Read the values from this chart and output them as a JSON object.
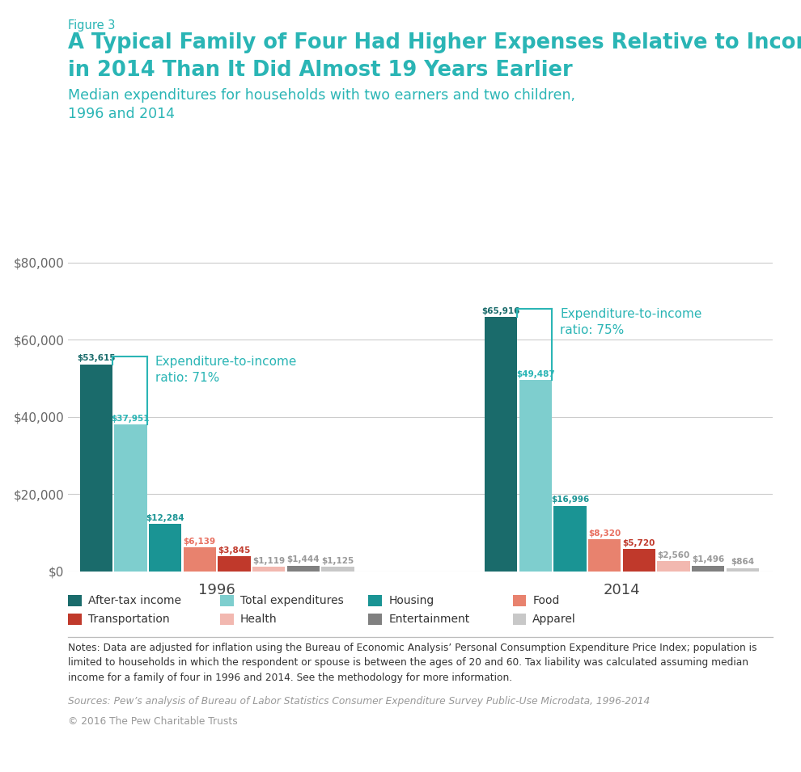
{
  "figure3_label": "Figure 3",
  "title_line1": "A Typical Family of Four Had Higher Expenses Relative to Income",
  "title_line2": "in 2014 Than It Did Almost 19 Years Earlier",
  "subtitle": "Median expenditures for households with two earners and two children,\n1996 and 2014",
  "years": [
    "1996",
    "2014"
  ],
  "categories": [
    "After-tax income",
    "Total expenditures",
    "Housing",
    "Food",
    "Transportation",
    "Health",
    "Entertainment",
    "Apparel"
  ],
  "values_1996": [
    53615,
    37951,
    12284,
    6139,
    3845,
    1119,
    1444,
    1125
  ],
  "values_2014": [
    65916,
    49487,
    16996,
    8320,
    5720,
    2560,
    1496,
    864
  ],
  "colors": [
    "#1a6b6b",
    "#7ecece",
    "#1a9494",
    "#e8826e",
    "#c0392b",
    "#f2b8b0",
    "#808080",
    "#c8c8c8"
  ],
  "bar_labels_1996": [
    "$53,615",
    "$37,951",
    "$12,284",
    "$6,139",
    "$3,845",
    "$1,119",
    "$1,444",
    "$1,125"
  ],
  "bar_labels_2014": [
    "$65,916",
    "$49,487",
    "$16,996",
    "$8,320",
    "$5,720",
    "$2,560",
    "$1,496",
    "$864"
  ],
  "txt_colors": [
    "#1a6b6b",
    "#2ab5b5",
    "#1a9494",
    "#e87060",
    "#c0392b",
    "#999999",
    "#999999",
    "#999999"
  ],
  "ratio_1996": "Expenditure-to-income\nratio: 71%",
  "ratio_2014": "Expenditure-to-income\nratio: 75%",
  "legend_labels": [
    "After-tax income",
    "Total expenditures",
    "Housing",
    "Food",
    "Transportation",
    "Health",
    "Entertainment",
    "Apparel"
  ],
  "yticks": [
    0,
    20000,
    40000,
    60000,
    80000
  ],
  "ylabels": [
    "$0",
    "$20,000",
    "$40,000",
    "$60,000",
    "$80,000"
  ],
  "notes": "Notes: Data are adjusted for inflation using the Bureau of Economic Analysis’ Personal Consumption Expenditure Price Index; population is\nlimited to households in which the respondent or spouse is between the ages of 20 and 60. Tax liability was calculated assuming median\nincome for a family of four in 1996 and 2014. See the methodology for more information.",
  "sources": "Sources: Pew’s analysis of Bureau of Labor Statistics Consumer Expenditure Survey Public-Use Microdata, 1996-2014",
  "copyright": "© 2016 The Pew Charitable Trusts",
  "bracket_color": "#2ab5b5",
  "title_color": "#2ab5b5",
  "year_label_color": "#444444",
  "grid_color": "#cccccc",
  "tick_color": "#666666"
}
